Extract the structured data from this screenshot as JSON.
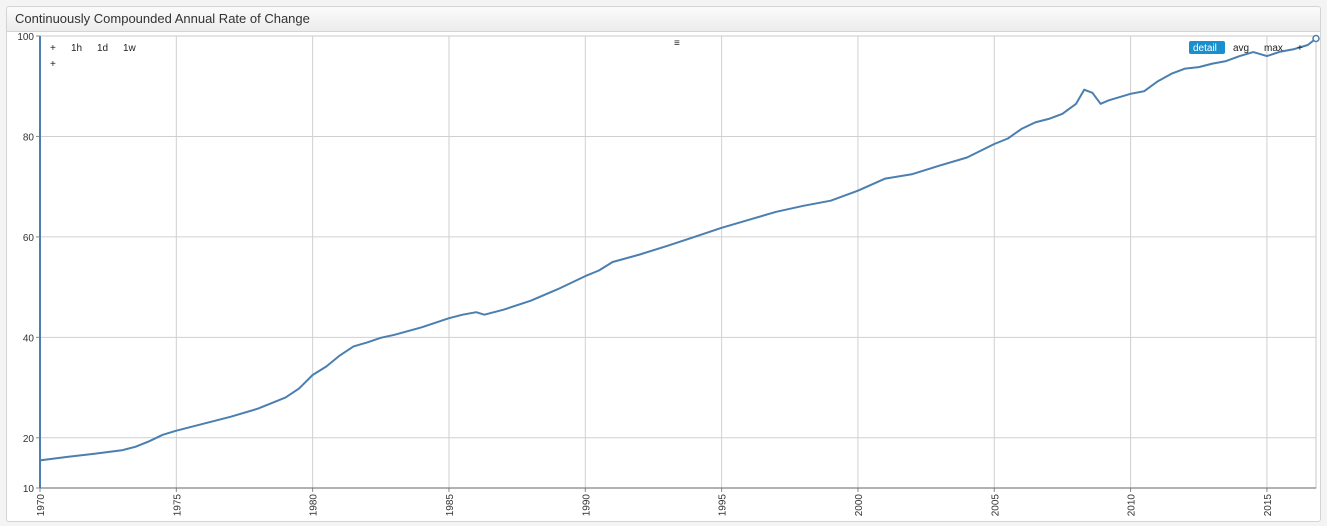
{
  "panel": {
    "title": "Continuously Compounded Annual Rate of Change"
  },
  "controls": {
    "zoom_in_label": "+",
    "zoom_in_label_2": "+",
    "range_1h": "1h",
    "range_1d": "1d",
    "range_1w": "1w",
    "menu_icon": "≡",
    "mode_detail": "detail",
    "mode_avg": "avg",
    "mode_max": "max",
    "mode_add": "+",
    "active_color": "#1a8fce"
  },
  "colors": {
    "line": "#4a7fb0",
    "grid": "#d0d0d0",
    "axis": "#4a7fb0"
  },
  "chart_data": {
    "type": "line",
    "title": "Continuously Compounded Annual Rate of Change",
    "xlabel": "",
    "ylabel": "",
    "xlim": [
      1970,
      2016.8
    ],
    "ylim": [
      10,
      100
    ],
    "x_ticks": [
      1970,
      1975,
      1980,
      1985,
      1990,
      1995,
      2000,
      2005,
      2010,
      2015
    ],
    "y_ticks": [
      10,
      20,
      40,
      60,
      80,
      100
    ],
    "grid": true,
    "series": [
      {
        "x": [
          1970,
          1971,
          1972,
          1973,
          1973.5,
          1974,
          1974.5,
          1975,
          1976,
          1977,
          1978,
          1979,
          1979.5,
          1980,
          1980.5,
          1981,
          1981.5,
          1982,
          1982.5,
          1983,
          1984,
          1985,
          1985.5,
          1986,
          1986.3,
          1987,
          1988,
          1989,
          1990,
          1990.5,
          1991,
          1992,
          1993,
          1994,
          1995,
          1996,
          1997,
          1998,
          1999,
          2000,
          2001,
          2002,
          2003,
          2004,
          2005,
          2005.5,
          2006,
          2006.5,
          2007,
          2007.5,
          2008,
          2008.3,
          2008.6,
          2008.9,
          2009.2,
          2010,
          2010.5,
          2011,
          2011.5,
          2012,
          2012.5,
          2013,
          2013.5,
          2014,
          2014.5,
          2015,
          2015.5,
          2016,
          2016.5,
          2016.8
        ],
        "y": [
          15.5,
          16.2,
          16.8,
          17.5,
          18.2,
          19.3,
          20.6,
          21.4,
          22.8,
          24.2,
          25.8,
          28.0,
          29.8,
          32.5,
          34.2,
          36.4,
          38.2,
          39.0,
          39.9,
          40.5,
          42.0,
          43.8,
          44.5,
          45.0,
          44.5,
          45.5,
          47.3,
          49.6,
          52.2,
          53.3,
          55.0,
          56.5,
          58.2,
          60.0,
          61.8,
          63.4,
          65.0,
          66.2,
          67.2,
          69.2,
          71.6,
          72.5,
          74.2,
          75.8,
          78.5,
          79.6,
          81.5,
          82.8,
          83.5,
          84.5,
          86.5,
          89.3,
          88.7,
          86.5,
          87.2,
          88.5,
          89.0,
          91.0,
          92.5,
          93.5,
          93.8,
          94.5,
          95.0,
          96.0,
          96.8,
          96.0,
          96.9,
          97.4,
          98.2,
          99.5
        ]
      }
    ]
  }
}
